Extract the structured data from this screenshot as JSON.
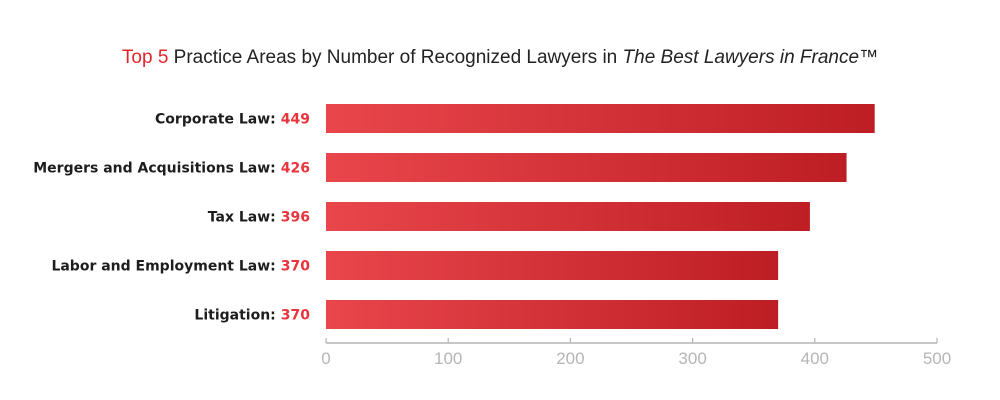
{
  "chart_data": {
    "type": "bar",
    "orientation": "horizontal",
    "title": {
      "highlight": "Top 5",
      "main": " Practice Areas by Number of Recognized Lawyers in ",
      "italic": "The Best Lawyers in France",
      "suffix": "™"
    },
    "categories": [
      "Corporate Law",
      "Mergers and Acquisitions Law",
      "Tax Law",
      "Labor and Employment Law",
      "Litigation"
    ],
    "values": [
      449,
      426,
      396,
      370,
      370
    ],
    "label_separator": ": ",
    "xlim": [
      0,
      500
    ],
    "xticks": [
      0,
      100,
      200,
      300,
      400,
      500
    ],
    "xlabel": "",
    "ylabel": "",
    "grid": false,
    "legend": "none",
    "colors": {
      "accent": "#e3242b",
      "value_label": "#e8353c",
      "bar_start": "#e8464b",
      "bar_end": "#bd1e24",
      "axis": "#b5b5b5",
      "text": "#1d1d1f"
    }
  }
}
